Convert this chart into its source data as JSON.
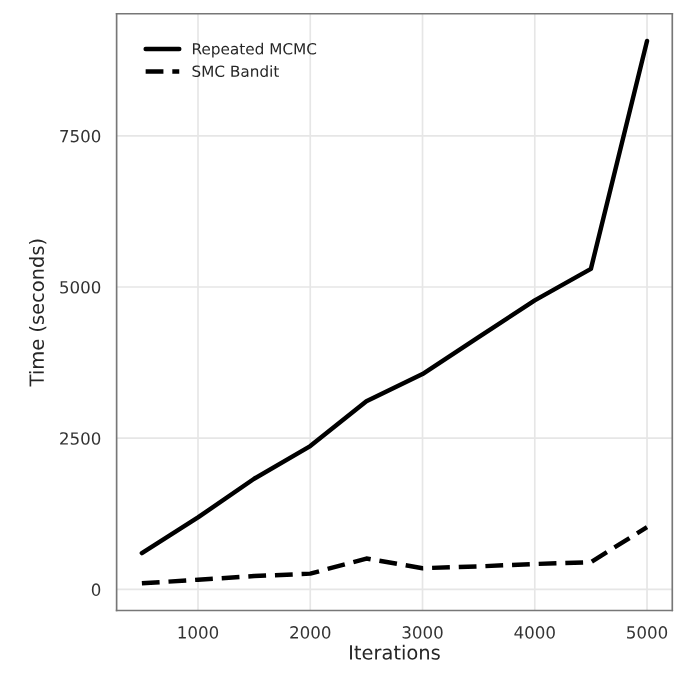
{
  "chart_data": {
    "type": "line",
    "xlabel": "Iterations",
    "ylabel": "Time (seconds)",
    "x": [
      500,
      1000,
      1500,
      2000,
      2500,
      3000,
      3500,
      4000,
      4500,
      5000
    ],
    "series": [
      {
        "name": "Repeated MCMC",
        "color": "#000000",
        "line_style": "solid",
        "values": [
          600,
          1190,
          1830,
          2370,
          3110,
          3560,
          4170,
          4780,
          5300,
          9070
        ]
      },
      {
        "name": "SMC Bandit",
        "color": "#000000",
        "line_style": "dashed",
        "values": [
          100,
          160,
          220,
          260,
          510,
          350,
          380,
          420,
          450,
          1030
        ]
      }
    ],
    "xlim": [
      275,
      5225
    ],
    "xticks": [
      1000,
      2000,
      3000,
      4000,
      5000
    ],
    "ylim": [
      -350,
      9520
    ],
    "yticks": [
      0,
      2500,
      5000,
      7500
    ],
    "grid": true,
    "legend": "top left"
  }
}
